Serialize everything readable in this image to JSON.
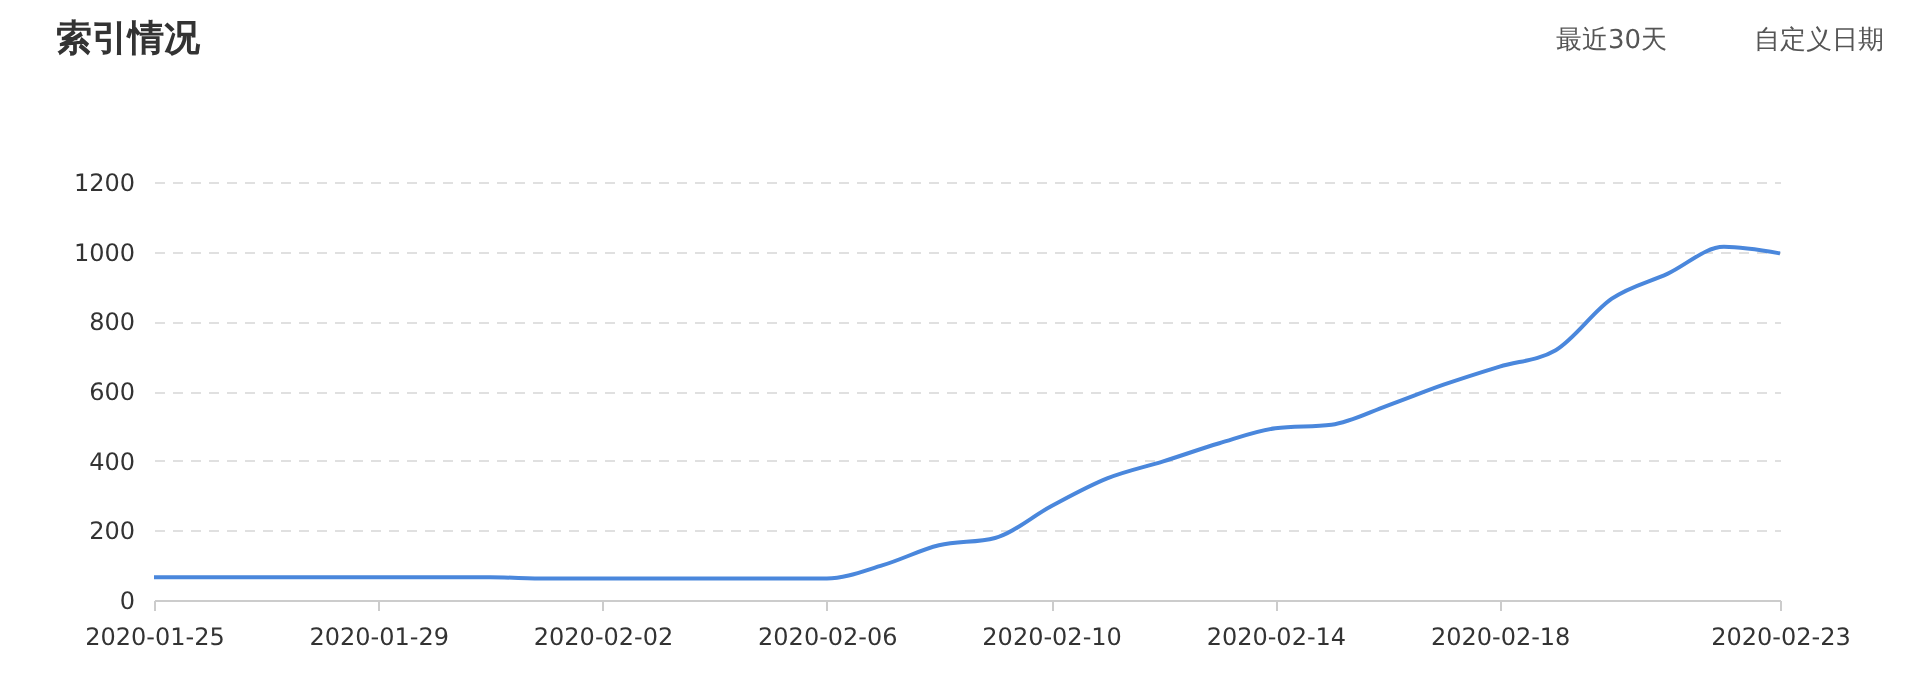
{
  "chart_data": {
    "type": "line",
    "title": "索引情况",
    "annotations": [
      "最近30天",
      "自定义日期"
    ],
    "x": [
      "2020-01-25",
      "2020-01-26",
      "2020-01-27",
      "2020-01-28",
      "2020-01-29",
      "2020-01-30",
      "2020-01-31",
      "2020-02-01",
      "2020-02-02",
      "2020-02-03",
      "2020-02-04",
      "2020-02-05",
      "2020-02-06",
      "2020-02-07",
      "2020-02-08",
      "2020-02-09",
      "2020-02-10",
      "2020-02-11",
      "2020-02-12",
      "2020-02-13",
      "2020-02-14",
      "2020-02-15",
      "2020-02-16",
      "2020-02-17",
      "2020-02-18",
      "2020-02-19",
      "2020-02-20",
      "2020-02-21",
      "2020-02-22",
      "2020-02-23"
    ],
    "series": [
      {
        "color": "#4a87dc",
        "values": [
          65,
          65,
          65,
          65,
          65,
          65,
          65,
          62,
          62,
          62,
          62,
          62,
          62,
          100,
          157,
          178,
          269,
          349,
          398,
          450,
          493,
          503,
          558,
          618,
          670,
          717,
          865,
          937,
          1014,
          995
        ]
      }
    ],
    "xlim": [
      "2020-01-25",
      "2020-02-23"
    ],
    "xticks": [
      "2020-01-25",
      "2020-01-29",
      "2020-02-02",
      "2020-02-06",
      "2020-02-10",
      "2020-02-14",
      "2020-02-18",
      "2020-02-23"
    ],
    "ylim": [
      0,
      1200
    ],
    "yticks": [
      0,
      200,
      400,
      600,
      800,
      1000,
      1200
    ],
    "grid": "y"
  }
}
